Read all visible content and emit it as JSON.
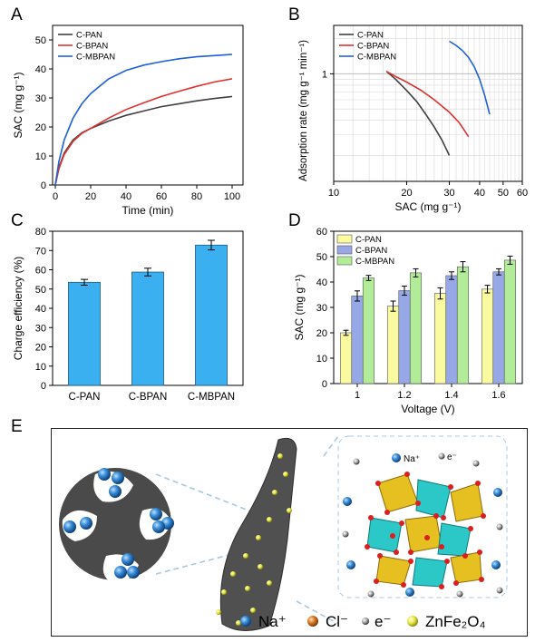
{
  "panels": {
    "A": "A",
    "B": "B",
    "C": "C",
    "D": "D",
    "E": "E"
  },
  "chart_data": [
    {
      "id": "A",
      "type": "line",
      "xlabel": "Time (min)",
      "ylabel": "SAC (mg g⁻¹)",
      "xlim": [
        0,
        100
      ],
      "ylim": [
        0,
        55
      ],
      "xticks": [
        0,
        20,
        40,
        60,
        80,
        100
      ],
      "yticks": [
        0,
        10,
        20,
        30,
        40,
        50
      ],
      "legend_position": "top-left",
      "grid": false,
      "series": [
        {
          "name": "C-PAN",
          "color": "#404040",
          "x": [
            0,
            2,
            5,
            10,
            15,
            20,
            30,
            40,
            50,
            60,
            70,
            80,
            90,
            100
          ],
          "y": [
            0,
            6,
            11,
            15.5,
            18,
            19.5,
            22,
            24,
            25.5,
            27,
            28,
            29,
            29.8,
            30.5
          ]
        },
        {
          "name": "C-BPAN",
          "color": "#e03030",
          "x": [
            0,
            2,
            5,
            10,
            15,
            20,
            30,
            40,
            50,
            60,
            70,
            80,
            90,
            100
          ],
          "y": [
            0,
            5.5,
            10.5,
            15,
            17.8,
            19.5,
            23,
            26,
            28.3,
            30.5,
            32.3,
            34,
            35.5,
            36.6
          ]
        },
        {
          "name": "C-MBPAN",
          "color": "#2060d8",
          "x": [
            0,
            2,
            5,
            10,
            15,
            20,
            30,
            40,
            50,
            60,
            70,
            80,
            90,
            100
          ],
          "y": [
            0,
            8,
            15.5,
            23,
            28,
            31.5,
            36.5,
            39.5,
            41.3,
            42.5,
            43.5,
            44.2,
            44.6,
            45
          ]
        }
      ]
    },
    {
      "id": "B",
      "type": "line",
      "xlabel": "SAC (mg g⁻¹)",
      "ylabel": "Adsorption rate (mg g⁻¹ min⁻¹)",
      "xscale": "log",
      "yscale": "log",
      "xlim": [
        10,
        60
      ],
      "ylim": [
        0.12,
        2.6
      ],
      "xticks": [
        10,
        20,
        30,
        40,
        50,
        60
      ],
      "ytick_labels": [
        "1"
      ],
      "legend_position": "top-left",
      "grid": true,
      "series": [
        {
          "name": "C-PAN",
          "color": "#404040",
          "x": [
            16.5,
            18,
            20,
            22,
            24,
            26,
            28,
            30
          ],
          "y": [
            1.05,
            0.9,
            0.72,
            0.58,
            0.45,
            0.35,
            0.27,
            0.2
          ]
        },
        {
          "name": "C-BPAN",
          "color": "#e03030",
          "x": [
            16.5,
            18,
            20,
            23,
            26,
            30,
            33,
            36
          ],
          "y": [
            1.05,
            0.95,
            0.85,
            0.72,
            0.6,
            0.47,
            0.38,
            0.29
          ]
        },
        {
          "name": "C-MBPAN",
          "color": "#2060d8",
          "x": [
            30,
            32,
            34,
            36,
            38,
            40,
            42,
            44
          ],
          "y": [
            1.9,
            1.75,
            1.58,
            1.38,
            1.15,
            0.9,
            0.65,
            0.45
          ]
        }
      ]
    },
    {
      "id": "C",
      "type": "bar",
      "ylabel": "Charge efficiency (%)",
      "ylim": [
        0,
        80
      ],
      "yticks": [
        0,
        10,
        20,
        30,
        40,
        50,
        60,
        70,
        80
      ],
      "categories": [
        "C-PAN",
        "C-BPAN",
        "C-MBPAN"
      ],
      "values": [
        53.5,
        58.8,
        72.8
      ],
      "errors": [
        1.5,
        2,
        2.5
      ],
      "color": "#3ab0f0",
      "grid": false
    },
    {
      "id": "D",
      "type": "bar",
      "xlabel": "Voltage (V)",
      "ylabel": "SAC (mg g⁻¹)",
      "ylim": [
        0,
        60
      ],
      "yticks": [
        0,
        10,
        20,
        30,
        40,
        50,
        60
      ],
      "categories": [
        "1",
        "1.2",
        "1.4",
        "1.6"
      ],
      "legend_position": "top-left",
      "grid": false,
      "series": [
        {
          "name": "C-PAN",
          "color": "#fafaa0",
          "values": [
            20,
            30.5,
            35.5,
            37.2
          ],
          "errors": [
            1,
            2,
            2.2,
            1.5
          ]
        },
        {
          "name": "C-BPAN",
          "color": "#97a8e6",
          "values": [
            34.5,
            36.6,
            42.5,
            44
          ],
          "errors": [
            2,
            1.8,
            1.5,
            1.2
          ]
        },
        {
          "name": "C-MBPAN",
          "color": "#b3ec98",
          "values": [
            41.6,
            43.6,
            46,
            48.6
          ],
          "errors": [
            1,
            1.6,
            2,
            1.6
          ]
        }
      ]
    }
  ],
  "panelE": {
    "crystal_labels": {
      "na": "Na⁺",
      "e": "e⁻"
    },
    "legend": [
      {
        "icon": "na-ion-icon",
        "label": "Na⁺",
        "color": "#3a8ed8"
      },
      {
        "icon": "cl-ion-icon",
        "label": "Cl⁻",
        "color": "#d87a2a"
      },
      {
        "icon": "electron-icon",
        "label": "e⁻",
        "color": "#888888"
      },
      {
        "icon": "znfe2o4-icon",
        "label": "ZnFe₂O₄",
        "color": "#e6e640"
      }
    ]
  }
}
